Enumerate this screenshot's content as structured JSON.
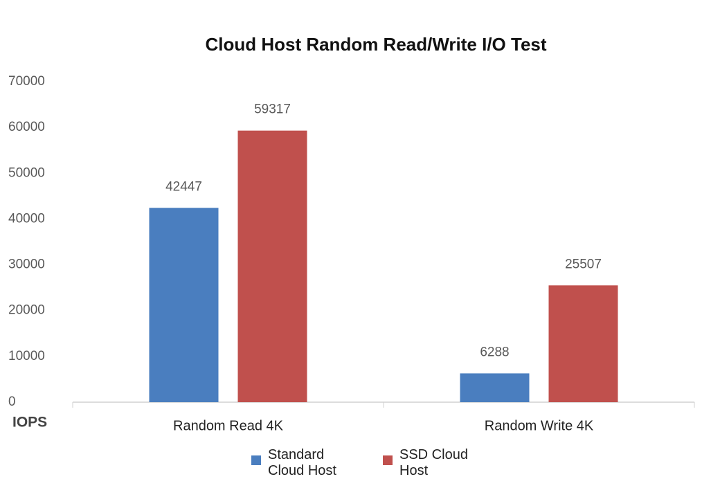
{
  "chart_data": {
    "type": "bar",
    "title": "Cloud Host Random Read/Write I/O Test",
    "y_label": "IOPS",
    "categories": [
      "Random Read 4K",
      "Random Write 4K"
    ],
    "series": [
      {
        "name": "Standard Cloud Host",
        "color": "#4a7ebf",
        "values": [
          42447,
          6288
        ]
      },
      {
        "name": "SSD Cloud Host",
        "color": "#c0504d",
        "values": [
          59317,
          25507
        ]
      }
    ],
    "ylim": [
      0,
      70000
    ],
    "yticks": [
      0,
      10000,
      20000,
      30000,
      40000,
      50000,
      60000,
      70000
    ],
    "grid": false,
    "legend": "bottom"
  }
}
